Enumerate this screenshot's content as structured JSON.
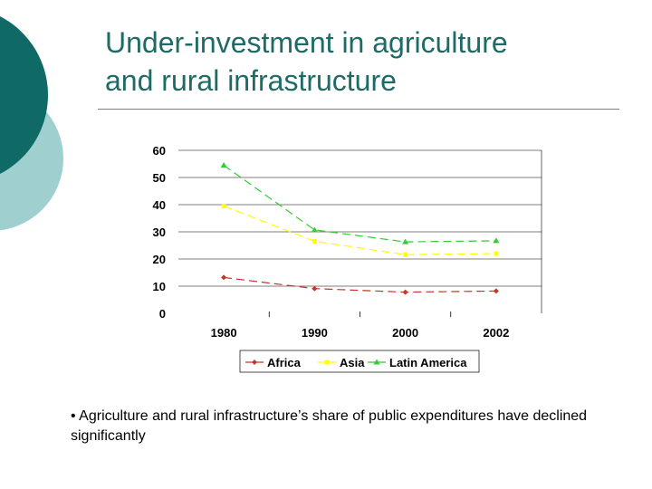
{
  "slide": {
    "title_line1": "Under-investment in agriculture",
    "title_line2": "and rural infrastructure",
    "bullet": "• Agriculture and rural infrastructure’s share of public expenditures have declined significantly"
  },
  "colors": {
    "title": "#1e6b66",
    "deco_dark": "#0f6a66",
    "deco_light": "#9fcfcf"
  },
  "chart_data": {
    "type": "line",
    "title": "",
    "xlabel": "",
    "ylabel": "",
    "categories": [
      "1980",
      "1990",
      "2000",
      "2002"
    ],
    "yticks": [
      "0",
      "10",
      "20",
      "30",
      "40",
      "50",
      "60"
    ],
    "ylim": [
      0,
      60
    ],
    "grid": true,
    "legend": "bottom",
    "series": [
      {
        "name": "Africa",
        "values": [
          13.2,
          9.1,
          7.8,
          8.2
        ],
        "color": "#c0392b",
        "marker": "diamond"
      },
      {
        "name": "Asia",
        "values": [
          39.5,
          26.5,
          21.6,
          22.0
        ],
        "color": "#ffff00",
        "marker": "square"
      },
      {
        "name": "Latin America",
        "values": [
          54.5,
          30.7,
          26.3,
          26.7
        ],
        "color": "#33cc33",
        "marker": "triangle"
      }
    ]
  }
}
